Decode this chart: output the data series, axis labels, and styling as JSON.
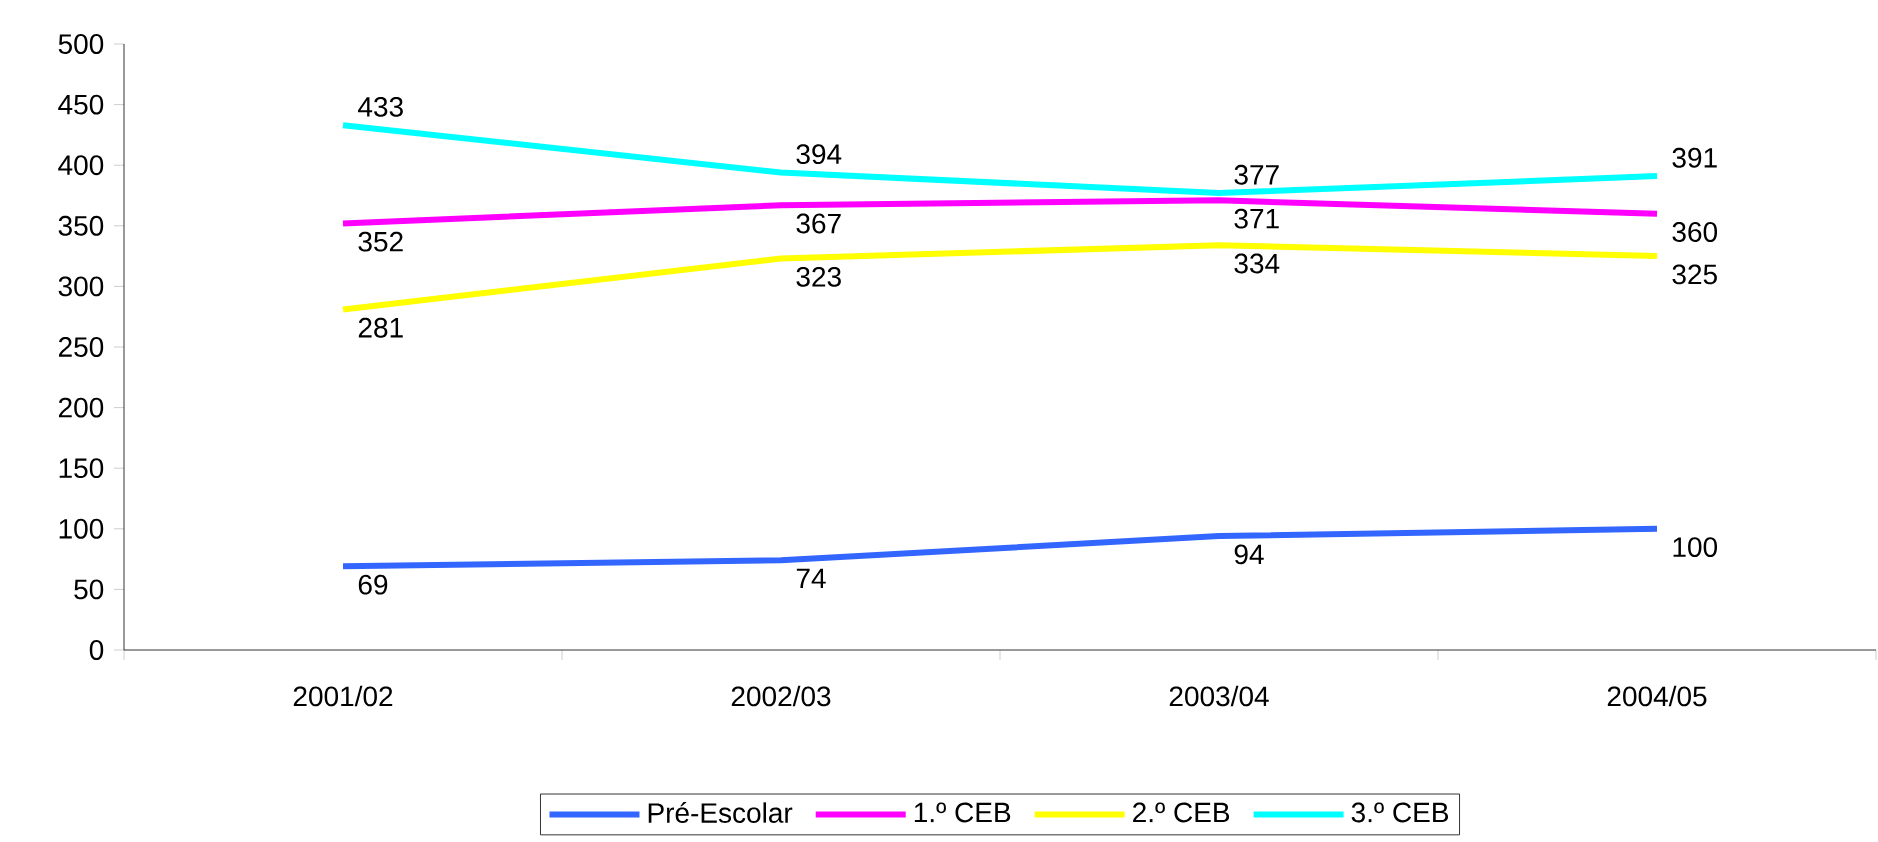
{
  "chart_data": {
    "type": "line",
    "categories": [
      "2001/02",
      "2002/03",
      "2003/04",
      "2004/05"
    ],
    "series": [
      {
        "name": "Pré-Escolar",
        "color": "#3366ff",
        "values": [
          69,
          74,
          94,
          100
        ]
      },
      {
        "name": "1.º CEB",
        "color": "#ff00ff",
        "values": [
          352,
          367,
          371,
          360
        ]
      },
      {
        "name": "2.º CEB",
        "color": "#ffff00",
        "values": [
          281,
          323,
          334,
          325
        ]
      },
      {
        "name": "3.º CEB",
        "color": "#00ffff",
        "values": [
          433,
          394,
          377,
          391
        ]
      }
    ],
    "ylim": [
      0,
      500
    ],
    "yticks": [
      0,
      50,
      100,
      150,
      200,
      250,
      300,
      350,
      400,
      450,
      500
    ],
    "data_labels": true,
    "legend": "bottom",
    "grid": false
  }
}
